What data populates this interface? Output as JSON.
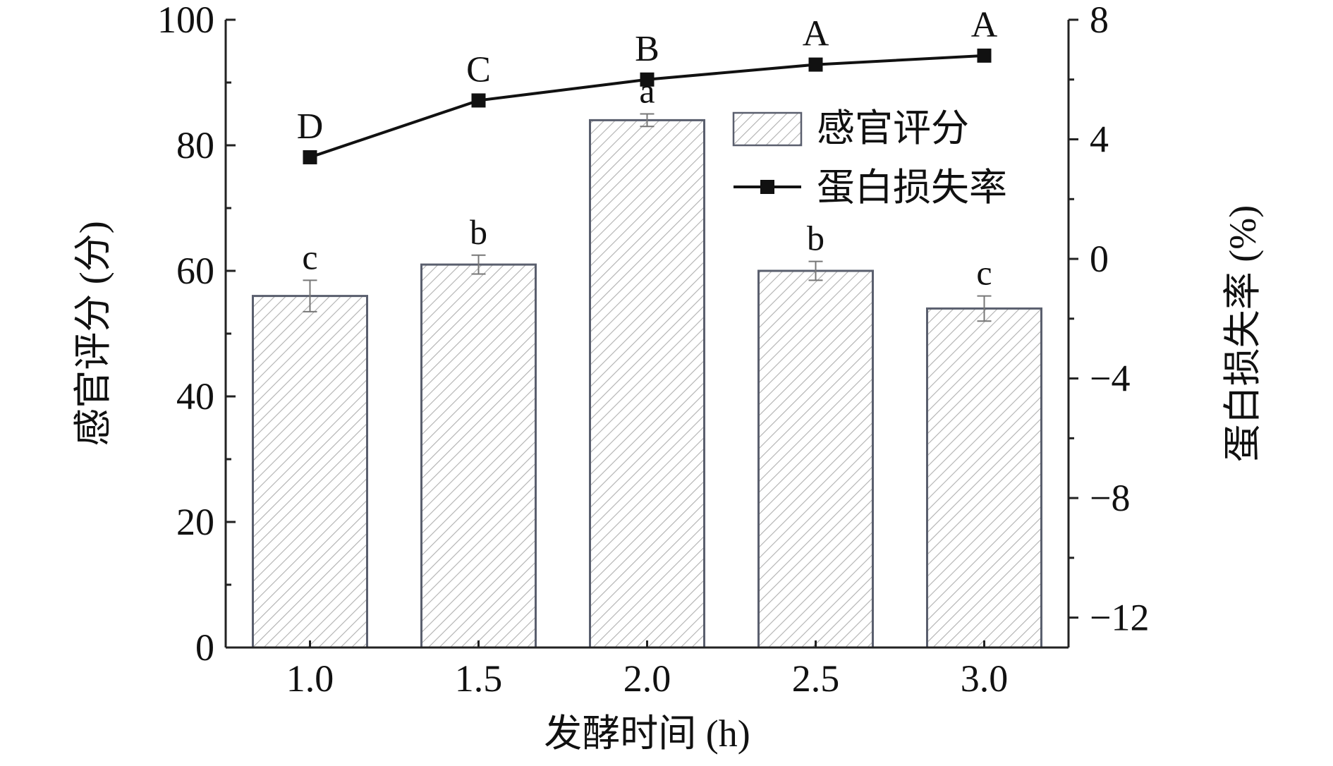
{
  "chart_data": {
    "type": "bar+line",
    "categories": [
      "1.0",
      "1.5",
      "2.0",
      "2.5",
      "3.0"
    ],
    "xlabel": "发酵时间 (h)",
    "ylabel_left": "感官评分 (分)",
    "ylabel_right": "蛋白损失率 (%)",
    "ylim_left": [
      0,
      100
    ],
    "yticks_left": [
      "0",
      "20",
      "40",
      "60",
      "80",
      "100"
    ],
    "ylim_right": [
      -13,
      8
    ],
    "yticks_right": [
      "−12",
      "−8",
      "−4",
      "0",
      "4",
      "8"
    ],
    "yticks_right_values": [
      -12,
      -8,
      -4,
      0,
      4,
      8
    ],
    "legend_position": "top-right",
    "series": [
      {
        "name": "感官评分",
        "kind": "bar",
        "axis": "left",
        "values": [
          56,
          61,
          84,
          60,
          54
        ],
        "errors": [
          2.5,
          1.5,
          1.0,
          1.5,
          2.0
        ],
        "labels": [
          "c",
          "b",
          "a",
          "b",
          "c"
        ]
      },
      {
        "name": "蛋白损失率",
        "kind": "line",
        "axis": "right",
        "values": [
          3.4,
          5.3,
          6.0,
          6.5,
          6.8
        ],
        "labels": [
          "D",
          "C",
          "B",
          "A",
          "A"
        ]
      }
    ],
    "colors": {
      "bar_border": "#5a5f6e",
      "hatch": "#b0b0b0",
      "line": "#111111",
      "axis": "#222222"
    }
  }
}
